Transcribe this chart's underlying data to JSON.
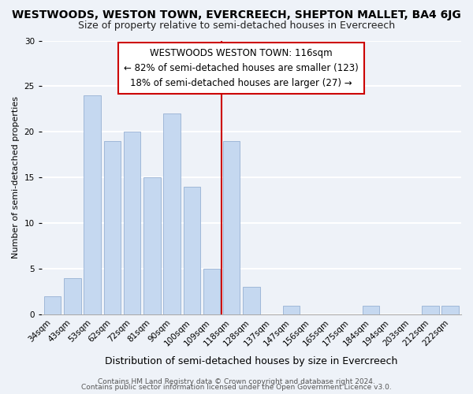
{
  "title": "WESTWOODS, WESTON TOWN, EVERCREECH, SHEPTON MALLET, BA4 6JG",
  "subtitle": "Size of property relative to semi-detached houses in Evercreech",
  "xlabel": "Distribution of semi-detached houses by size in Evercreech",
  "ylabel": "Number of semi-detached properties",
  "bin_labels": [
    "34sqm",
    "43sqm",
    "53sqm",
    "62sqm",
    "72sqm",
    "81sqm",
    "90sqm",
    "100sqm",
    "109sqm",
    "118sqm",
    "128sqm",
    "137sqm",
    "147sqm",
    "156sqm",
    "165sqm",
    "175sqm",
    "184sqm",
    "194sqm",
    "203sqm",
    "212sqm",
    "222sqm"
  ],
  "bin_values": [
    2,
    4,
    24,
    19,
    20,
    15,
    22,
    14,
    5,
    19,
    3,
    0,
    1,
    0,
    0,
    0,
    1,
    0,
    0,
    1,
    1
  ],
  "bar_color": "#c5d8f0",
  "bar_edge_color": "#a0b8d8",
  "annotation_title": "WESTWOODS WESTON TOWN: 116sqm",
  "annotation_line1": "← 82% of semi-detached houses are smaller (123)",
  "annotation_line2": "18% of semi-detached houses are larger (27) →",
  "annotation_box_color": "#ffffff",
  "annotation_box_edge": "#cc0000",
  "highlight_line_color": "#cc0000",
  "ylim": [
    0,
    30
  ],
  "yticks": [
    0,
    5,
    10,
    15,
    20,
    25,
    30
  ],
  "footer1": "Contains HM Land Registry data © Crown copyright and database right 2024.",
  "footer2": "Contains public sector information licensed under the Open Government Licence v3.0.",
  "background_color": "#eef2f8",
  "grid_color": "#ffffff",
  "title_fontsize": 10,
  "subtitle_fontsize": 9,
  "xlabel_fontsize": 9,
  "ylabel_fontsize": 8,
  "tick_fontsize": 7.5,
  "annotation_fontsize": 8.5,
  "footer_fontsize": 6.5
}
